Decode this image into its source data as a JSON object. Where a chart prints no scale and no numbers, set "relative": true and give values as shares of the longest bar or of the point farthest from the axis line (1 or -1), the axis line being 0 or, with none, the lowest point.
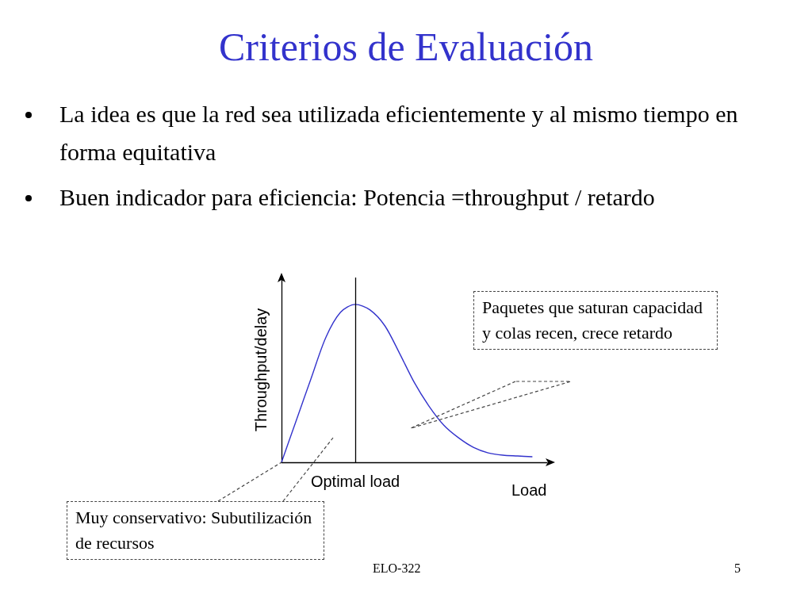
{
  "chart_data": {
    "type": "line",
    "title": "Criterios de Evaluación",
    "annotations": [
      "La idea es que la red sea utilizada eficientemente y al mismo tiempo en forma equitativa",
      "Buen indicador para eficiencia: Potencia =throughput / retardo",
      "Paquetes que saturan capacidad y colas recen, crece retardo",
      "Muy conservativo: Subutilización de recursos",
      "ELO-322",
      "5"
    ],
    "xlabel": "Load",
    "ylabel": "Throughput/delay",
    "categories": [
      null,
      null,
      null,
      null,
      null,
      null,
      null,
      null,
      null,
      null,
      null,
      null,
      null,
      null,
      null,
      null,
      null,
      null,
      null
    ],
    "values": [
      0,
      0.265,
      0.53,
      0.79,
      0.95,
      1,
      0.965,
      0.865,
      0.69,
      0.505,
      0.355,
      0.235,
      0.155,
      0.095,
      0.06,
      0.045,
      0.04,
      0.035,
      null
    ],
    "color": "#3333cc",
    "relative": true,
    "marker": "none",
    "ref_lines": [
      {
        "axis": "x",
        "label": "Optimal load",
        "color": "#000000"
      }
    ]
  }
}
